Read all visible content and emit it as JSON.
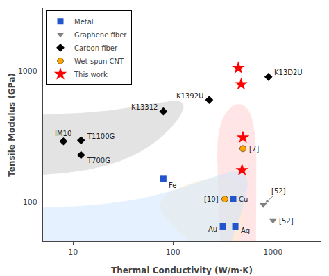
{
  "chart_data": {
    "type": "scatter",
    "xlabel": "Thermal Conductivity (W/m·K)",
    "ylabel": "Tensile Modulus (GPa)",
    "log": true,
    "xlim": [
      5,
      3000
    ],
    "ylim": [
      50,
      3000
    ],
    "xticks": [
      10,
      100,
      1000
    ],
    "yticks": [
      100,
      1000
    ],
    "grid": false,
    "legend": "upper left",
    "series": [
      {
        "name": "Metal",
        "color": "#2255cc",
        "marker": "square",
        "x": [
          80,
          315,
          420,
          400
        ],
        "values": [
          150,
          65,
          65,
          105
        ],
        "labels": [
          "Fe",
          "Au",
          "Ag",
          "Cu"
        ]
      },
      {
        "name": "Graphene fiber",
        "color": "gray",
        "marker": "triangle-down",
        "x": [
          800,
          1000
        ],
        "values": [
          95,
          72
        ],
        "labels": [
          "[52]",
          "[52]"
        ]
      },
      {
        "name": "Carbon fiber",
        "color": "black",
        "marker": "diamond",
        "x": [
          8,
          12,
          12,
          80,
          230,
          900
        ],
        "values": [
          290,
          295,
          228,
          490,
          600,
          900
        ],
        "labels": [
          "IM10",
          "T1100G",
          "T700G",
          "K13312",
          "K1392U",
          "K13D2U"
        ]
      },
      {
        "name": "Wet-spun CNT",
        "color": "#FFA500",
        "marker": "circle",
        "x": [
          500,
          330
        ],
        "values": [
          255,
          105
        ],
        "labels": [
          "[7]",
          "[10]"
        ]
      },
      {
        "name": "This work",
        "color": "red",
        "marker": "star",
        "x": [
          450,
          480,
          500,
          490
        ],
        "values": [
          1050,
          790,
          310,
          175
        ]
      }
    ],
    "regions": [
      {
        "cx_log": 1.3,
        "cy_log": 2.53,
        "width_log": 1.6,
        "height_log": 0.62,
        "angle": -20,
        "color": "#c8c8c8"
      },
      {
        "cx_log": 2.68,
        "cy_log": 2.28,
        "width_log": 0.35,
        "height_log": 1.22,
        "angle": 5,
        "color": "#ffcccc"
      },
      {
        "cx_log": 2.47,
        "cy_log": 1.97,
        "width_log": 0.6,
        "height_log": 0.52,
        "angle": 0,
        "color": "#ffeecc"
      },
      {
        "cx_log": 2.38,
        "cy_log": 1.93,
        "width_log": 0.95,
        "height_log": 0.62,
        "angle": 10,
        "color": "#cce5ff"
      }
    ]
  }
}
